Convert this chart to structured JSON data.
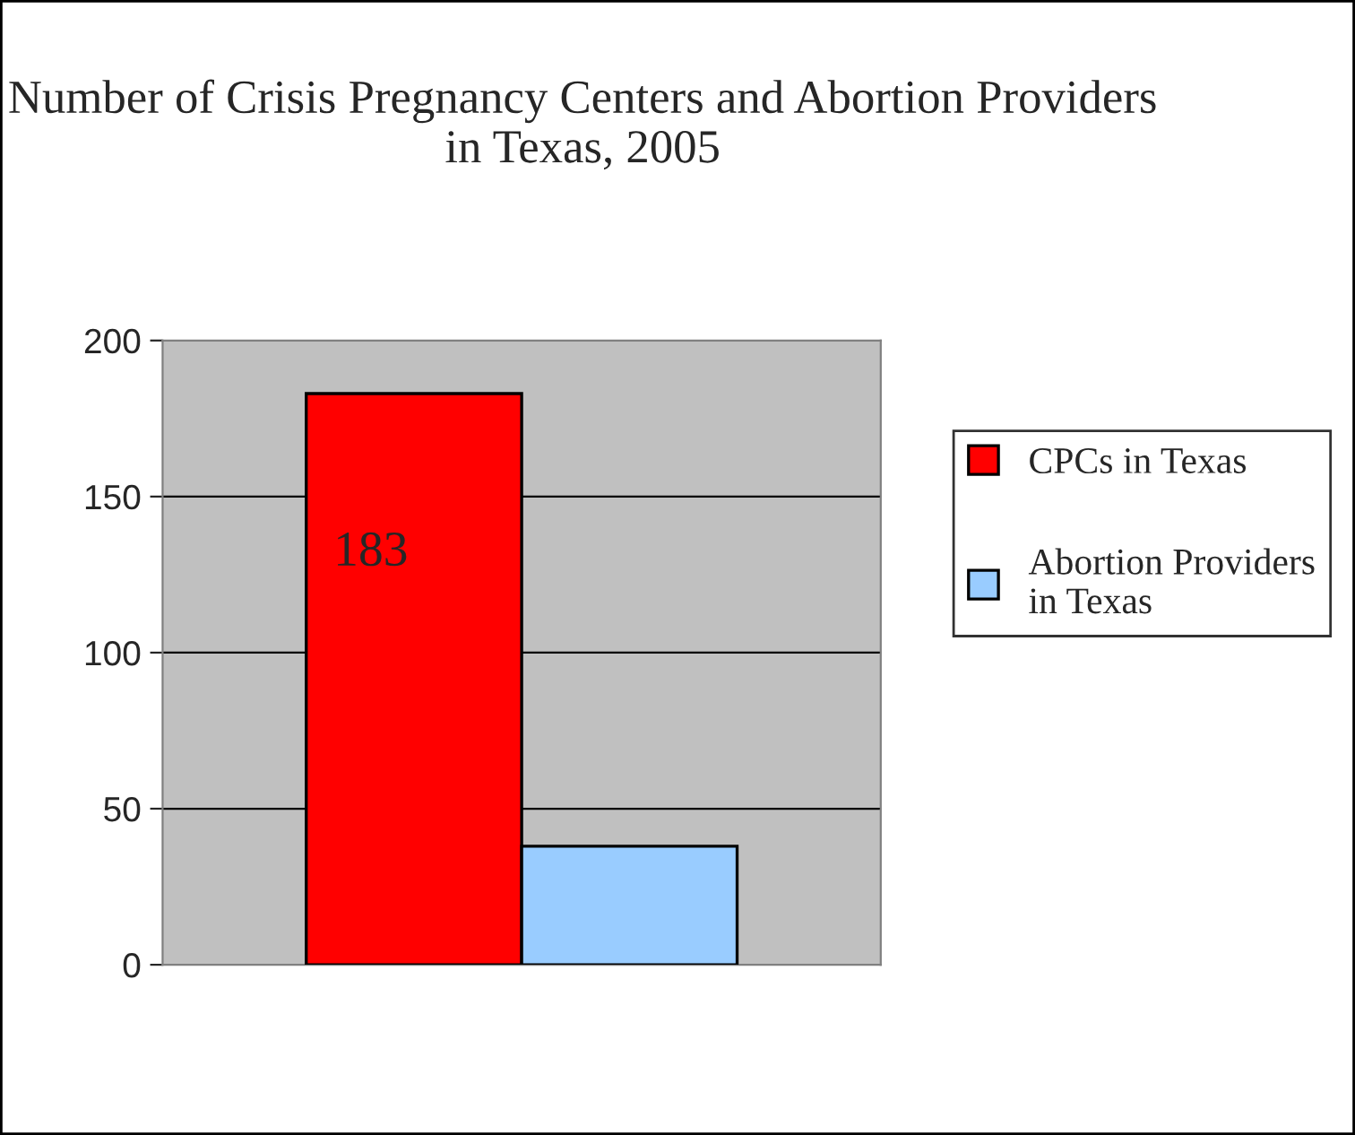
{
  "chart_data": {
    "type": "bar",
    "title": "Number of Crisis Pregnancy Centers and Abortion Providers in Texas, 2005",
    "categories": [
      null
    ],
    "series": [
      {
        "name": "CPCs in Texas",
        "color": "#ff0000",
        "values": [
          183
        ],
        "value_labels": [
          "183"
        ]
      },
      {
        "name": "Abortion Providers in Texas",
        "color": "#99ccff",
        "values": [
          38
        ],
        "value_labels": [
          null
        ]
      }
    ],
    "ylim": [
      0,
      200
    ],
    "yticks": [
      0,
      50,
      100,
      150,
      200
    ],
    "grid": "y",
    "legend": "right"
  }
}
